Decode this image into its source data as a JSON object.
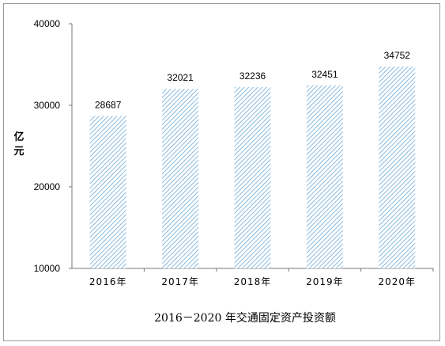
{
  "chart_data": {
    "type": "bar",
    "title": "2016－2020 年交通固定资产投资额",
    "ylabel": "亿元",
    "ylabel_chars": [
      "亿",
      "元"
    ],
    "categories": [
      "2016年",
      "2017年",
      "2018年",
      "2019年",
      "2020年"
    ],
    "values": [
      28687,
      32021,
      32236,
      32451,
      34752
    ],
    "ylim": [
      10000,
      40000
    ],
    "yticks": [
      10000,
      20000,
      30000,
      40000
    ],
    "bar_fill": "diagonal-hatch",
    "bar_color": "#6aa9d8",
    "grid": false,
    "legend": "none"
  }
}
